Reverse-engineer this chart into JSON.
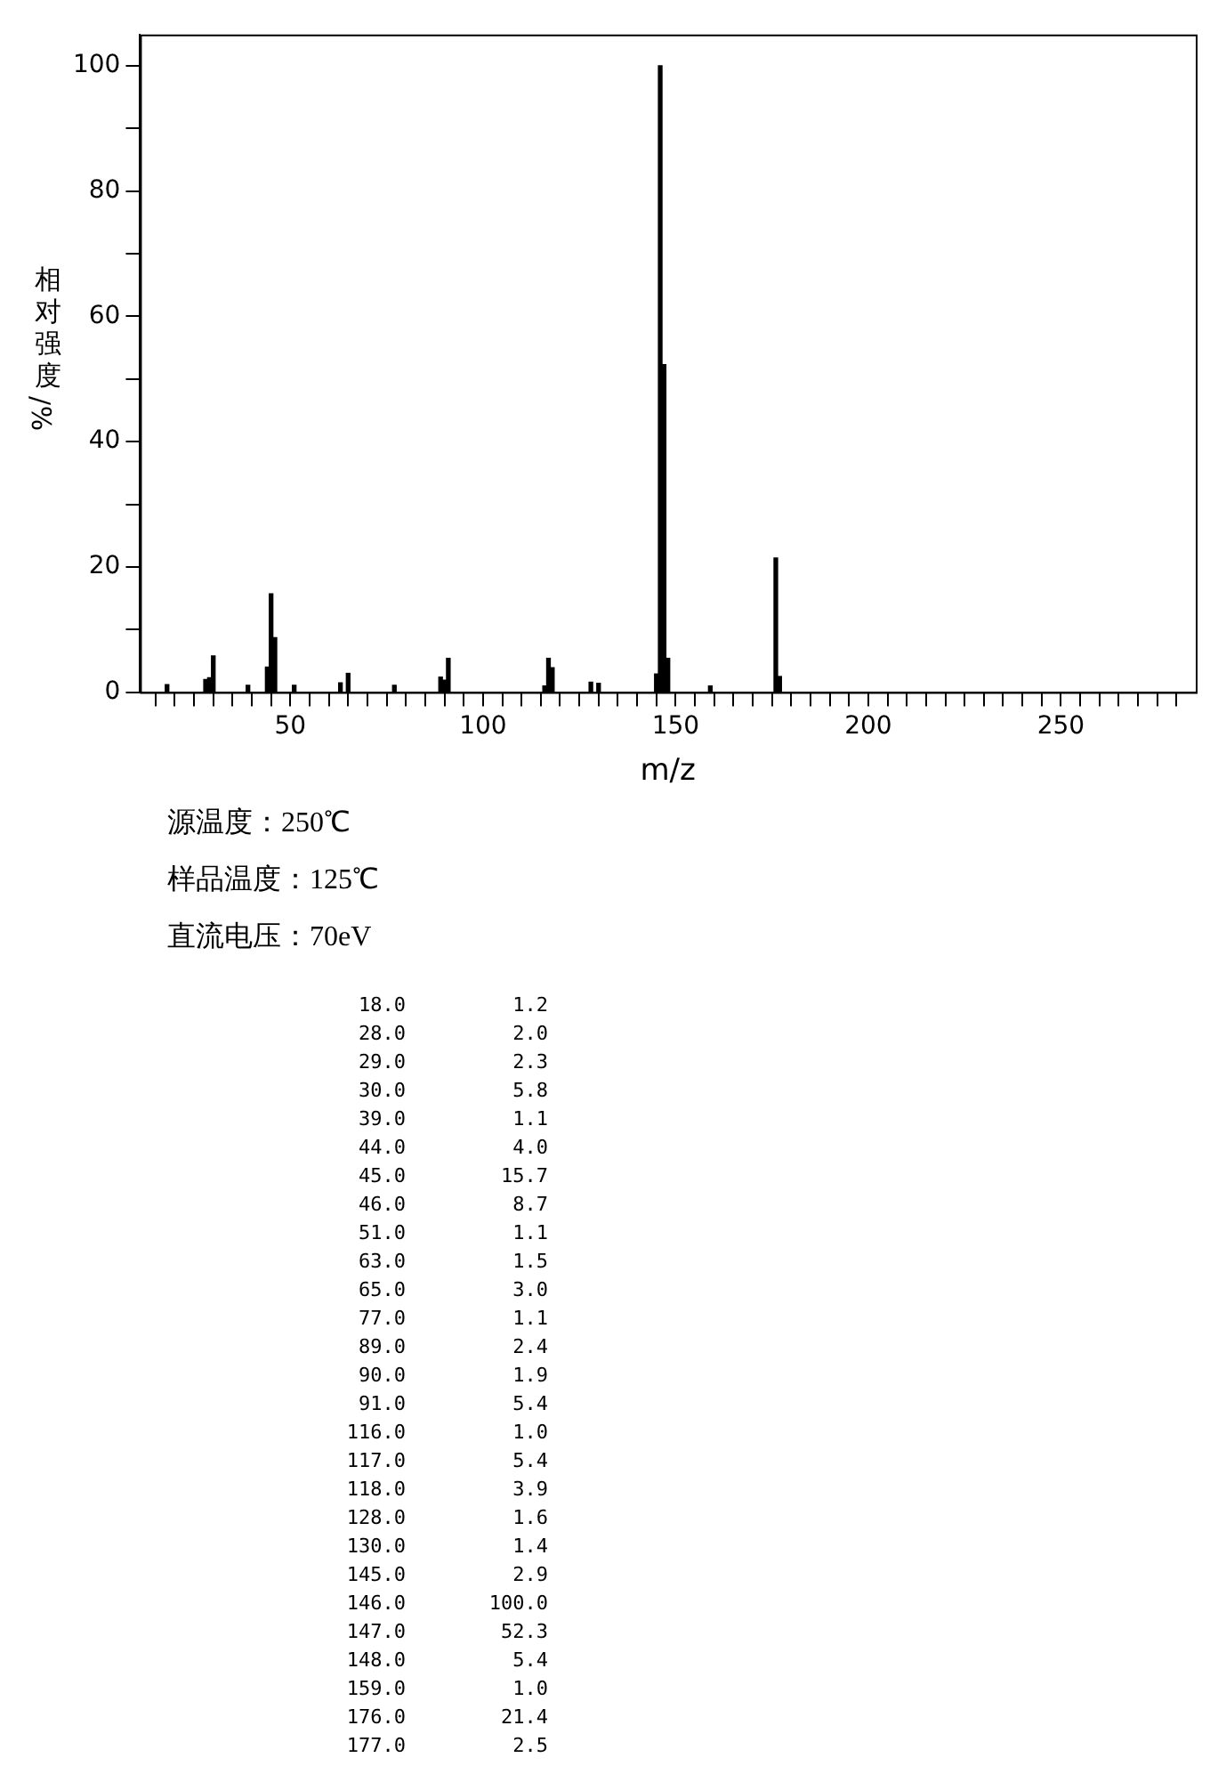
{
  "chart_data": {
    "type": "bar",
    "xlabel": "m/z",
    "ylabel": "相对强度/%",
    "x": [
      18,
      28,
      29,
      30,
      39,
      44,
      45,
      46,
      51,
      63,
      65,
      77,
      89,
      90,
      91,
      116,
      117,
      118,
      128,
      130,
      145,
      146,
      147,
      148,
      159,
      176,
      177
    ],
    "values": [
      1.2,
      2.0,
      2.3,
      5.8,
      1.1,
      4.0,
      15.7,
      8.7,
      1.1,
      1.5,
      3.0,
      1.1,
      2.4,
      1.9,
      5.4,
      1.0,
      5.4,
      3.9,
      1.6,
      1.4,
      2.9,
      100.0,
      52.3,
      5.4,
      1.0,
      21.4,
      2.5
    ],
    "color": "#000000",
    "xlim": [
      11,
      285
    ],
    "xticks": [
      {
        "value": 15,
        "label": null
      },
      {
        "value": 20,
        "label": null
      },
      {
        "value": 25,
        "label": null
      },
      {
        "value": 30,
        "label": null
      },
      {
        "value": 35,
        "label": null
      },
      {
        "value": 40,
        "label": null
      },
      {
        "value": 45,
        "label": null
      },
      50,
      {
        "value": 55,
        "label": null
      },
      {
        "value": 60,
        "label": null
      },
      {
        "value": 65,
        "label": null
      },
      {
        "value": 70,
        "label": null
      },
      {
        "value": 75,
        "label": null
      },
      {
        "value": 80,
        "label": null
      },
      {
        "value": 85,
        "label": null
      },
      {
        "value": 90,
        "label": null
      },
      {
        "value": 95,
        "label": null
      },
      100,
      {
        "value": 105,
        "label": null
      },
      {
        "value": 110,
        "label": null
      },
      {
        "value": 115,
        "label": null
      },
      {
        "value": 120,
        "label": null
      },
      {
        "value": 125,
        "label": null
      },
      {
        "value": 130,
        "label": null
      },
      {
        "value": 135,
        "label": null
      },
      {
        "value": 140,
        "label": null
      },
      {
        "value": 145,
        "label": null
      },
      150,
      {
        "value": 155,
        "label": null
      },
      {
        "value": 160,
        "label": null
      },
      {
        "value": 165,
        "label": null
      },
      {
        "value": 170,
        "label": null
      },
      {
        "value": 175,
        "label": null
      },
      {
        "value": 180,
        "label": null
      },
      {
        "value": 185,
        "label": null
      },
      {
        "value": 190,
        "label": null
      },
      {
        "value": 195,
        "label": null
      },
      200,
      {
        "value": 205,
        "label": null
      },
      {
        "value": 210,
        "label": null
      },
      {
        "value": 215,
        "label": null
      },
      {
        "value": 220,
        "label": null
      },
      {
        "value": 225,
        "label": null
      },
      {
        "value": 230,
        "label": null
      },
      {
        "value": 235,
        "label": null
      },
      {
        "value": 240,
        "label": null
      },
      {
        "value": 245,
        "label": null
      },
      250,
      {
        "value": 255,
        "label": null
      },
      {
        "value": 260,
        "label": null
      },
      {
        "value": 265,
        "label": null
      },
      {
        "value": 270,
        "label": null
      },
      {
        "value": 275,
        "label": null
      },
      {
        "value": 280,
        "label": null
      }
    ],
    "ylim": [
      0,
      105
    ],
    "yticks": [
      0,
      {
        "value": 10,
        "label": null
      },
      20,
      {
        "value": 30,
        "label": null
      },
      40,
      {
        "value": 50,
        "label": null
      },
      60,
      {
        "value": 70,
        "label": null
      },
      80,
      {
        "value": 90,
        "label": null
      },
      100
    ],
    "grid": false,
    "legend": false,
    "annotations": [
      "源温度：250℃",
      "样品温度：125℃",
      "直流电压：70eV",
      "18.0\t1.2",
      "28.0\t2.0",
      "29.0\t2.3",
      "30.0\t5.8",
      "39.0\t1.1",
      "44.0\t4.0",
      "45.0\t15.7",
      "46.0\t8.7",
      "51.0\t1.1",
      "63.0\t1.5",
      "65.0\t3.0",
      "77.0\t1.1",
      "89.0\t2.4",
      "90.0\t1.9",
      "91.0\t5.4",
      "116.0\t1.0",
      "117.0\t5.4",
      "118.0\t3.9",
      "128.0\t1.6",
      "130.0\t1.4",
      "145.0\t2.9",
      "146.0\t100.0",
      "147.0\t52.3",
      "148.0\t5.4",
      "159.0\t1.0",
      "176.0\t21.4",
      "177.0\t2.5"
    ]
  }
}
